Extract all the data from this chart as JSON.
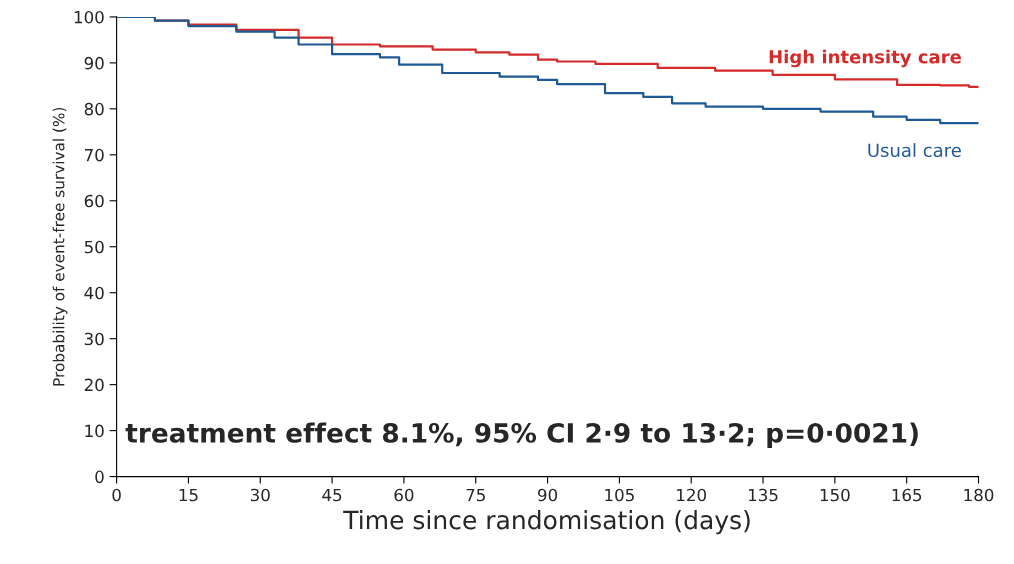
{
  "chart_data": {
    "type": "step",
    "xlabel": "Time since randomisation (days)",
    "ylabel": "Probability of event-free survival (%)",
    "series": [
      {
        "name": "High intensity care",
        "color": "#d42a2a",
        "x": [
          0,
          8,
          15,
          25,
          38,
          45,
          55,
          66,
          75,
          82,
          88,
          92,
          100,
          113,
          125,
          137,
          150,
          163,
          172,
          178,
          180
        ],
        "values": [
          100,
          99.2,
          98.3,
          97.2,
          95.5,
          94.0,
          93.6,
          92.9,
          92.3,
          91.8,
          90.7,
          90.3,
          89.8,
          88.9,
          88.3,
          87.4,
          86.4,
          85.2,
          85.1,
          84.8,
          84.7
        ]
      },
      {
        "name": "Usual care",
        "color": "#1f5a96",
        "x": [
          0,
          8,
          15,
          25,
          33,
          38,
          45,
          55,
          59,
          68,
          80,
          88,
          92,
          102,
          110,
          116,
          123,
          135,
          147,
          158,
          165,
          172,
          180
        ],
        "values": [
          100,
          99.2,
          98.0,
          96.8,
          95.5,
          94.0,
          91.9,
          91.2,
          89.6,
          87.8,
          87.0,
          86.3,
          85.4,
          83.4,
          82.6,
          81.2,
          80.5,
          80.0,
          79.4,
          78.3,
          77.6,
          76.9,
          76.9
        ]
      }
    ],
    "xlim": [
      0,
      180
    ],
    "xticks": [
      0,
      15,
      30,
      45,
      60,
      75,
      90,
      105,
      120,
      135,
      150,
      165,
      180
    ],
    "ylim": [
      0,
      100
    ],
    "yticks": [
      0,
      10,
      20,
      30,
      40,
      50,
      60,
      70,
      80,
      90,
      100
    ],
    "annotations": [
      "treatment effect 8.1%, 95% CI 2·9 to 13·2; p=0·0021)"
    ],
    "grid": false,
    "legend": false
  }
}
